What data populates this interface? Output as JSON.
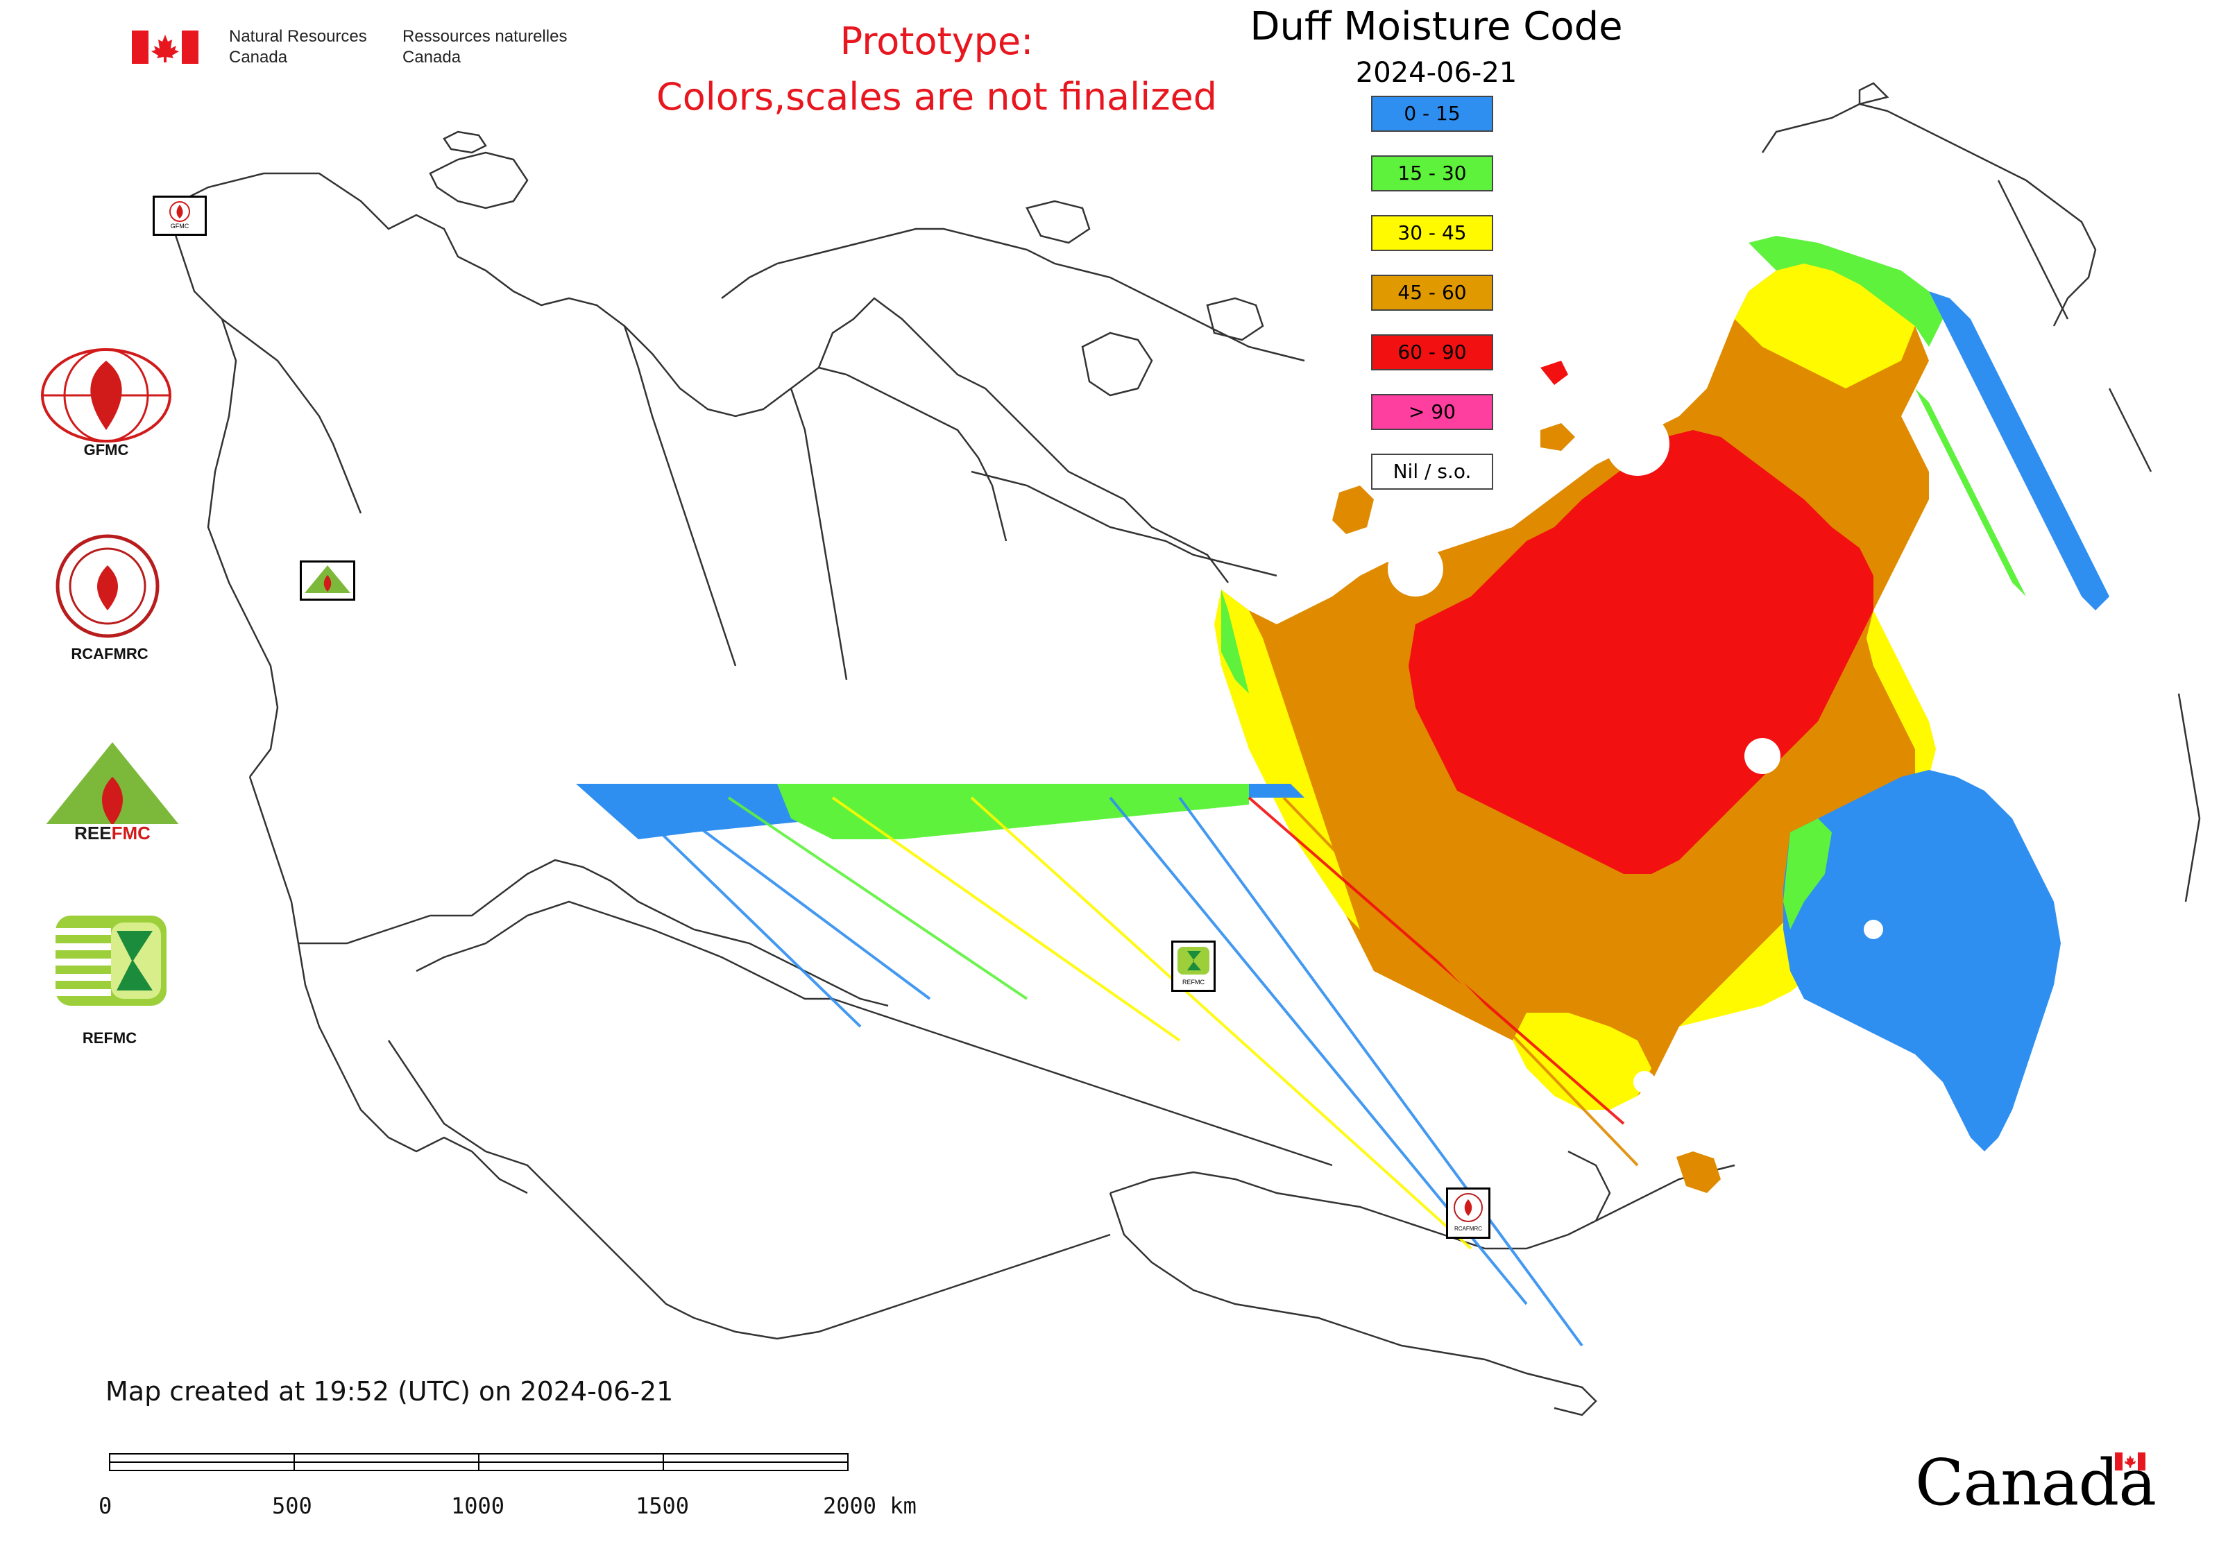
{
  "header": {
    "agency_en_line1": "Natural Resources",
    "agency_en_line2": "Canada",
    "agency_fr_line1": "Ressources naturelles",
    "agency_fr_line2": "Canada",
    "prototype_line1": "Prototype:",
    "prototype_line2": "Colors,scales are not finalized"
  },
  "legend": {
    "title": "Duff Moisture Code",
    "date": "2024-06-21",
    "items": [
      {
        "label": "0 - 15",
        "color": "#2f8ff0"
      },
      {
        "label": "15 - 30",
        "color": "#5ef23c"
      },
      {
        "label": "30 - 45",
        "color": "#fffa00"
      },
      {
        "label": "45 - 60",
        "color": "#e09a00"
      },
      {
        "label": "60 - 90",
        "color": "#f21010"
      },
      {
        "label": "> 90",
        "color": "#ff3fa0"
      },
      {
        "label": "Nil / s.o.",
        "color": "#ffffff"
      }
    ]
  },
  "logos": [
    {
      "label": "GFMC",
      "icon": "gfmc-logo-icon"
    },
    {
      "label": "RCAFMRC",
      "icon": "rcafmrc-logo-icon"
    },
    {
      "label": "REEFMC",
      "icon": "reefmc-logo-icon"
    },
    {
      "label": "REFMC",
      "icon": "refmc-logo-icon"
    }
  ],
  "map_badges": {
    "gfmc": "GFMC",
    "reefmc": "REEFMC",
    "refmc": "REFMC",
    "rcafmrc": "RCAFMRC"
  },
  "footer": {
    "created": "Map created at 19:52 (UTC) on 2024-06-21",
    "scale_labels": [
      "0",
      "500",
      "1000",
      "1500",
      "2000 km"
    ],
    "wordmark": "Canada"
  },
  "colors": {
    "accent_red": "#e8161e",
    "boundary": "#333333"
  }
}
